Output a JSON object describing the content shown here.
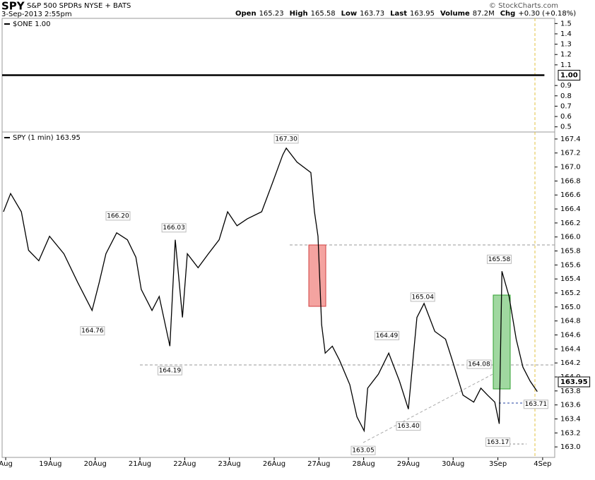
{
  "header": {
    "symbol": "SPY",
    "name": "S&P 500 SPDRs NYSE + BATS",
    "date": "3-Sep-2013 2:55pm",
    "copyright": "© StockCharts.com",
    "quote": [
      {
        "label": "Open",
        "value": "165.23"
      },
      {
        "label": "High",
        "value": "165.58"
      },
      {
        "label": "Low",
        "value": "163.73"
      },
      {
        "label": "Last",
        "value": "163.95"
      },
      {
        "label": "Volume",
        "value": "87.2M"
      },
      {
        "label": "Chg",
        "value": "+0.30 (+0.18%)"
      }
    ]
  },
  "chart_data": [
    {
      "type": "line",
      "title": "$ONE 1.00",
      "value_box": "1.00",
      "x": [
        -0.08,
        12.04
      ],
      "series": [
        {
          "name": "$ONE",
          "color": "#000000",
          "values": [
            1,
            1
          ]
        }
      ],
      "xlim": [
        -0.08,
        12.27
      ],
      "ylim": [
        0.45,
        1.55
      ],
      "yticks": [
        0.5,
        0.6,
        0.7,
        0.8,
        0.9,
        1.1,
        1.2,
        1.3,
        1.4,
        1.5
      ]
    },
    {
      "type": "line",
      "title": "SPY (1 min) 163.95",
      "value_box": "163.95",
      "x": [
        -0.05,
        0.11,
        0.35,
        0.51,
        0.74,
        0.98,
        1.3,
        1.61,
        1.93,
        2.09,
        2.24,
        2.48,
        2.72,
        2.91,
        3.03,
        3.27,
        3.43,
        3.67,
        3.79,
        3.95,
        4.06,
        4.3,
        4.53,
        4.77,
        4.96,
        5.17,
        5.4,
        5.72,
        5.96,
        6.19,
        6.27,
        6.51,
        6.82,
        6.9,
        6.98,
        7.06,
        7.14,
        7.3,
        7.46,
        7.69,
        7.85,
        8.01,
        8.09,
        8.33,
        8.56,
        8.8,
        9.0,
        9.19,
        9.35,
        9.59,
        9.83,
        9.98,
        10.22,
        10.46,
        10.62,
        10.77,
        10.93,
        11.03,
        11.09,
        11.25,
        11.41,
        11.56,
        11.72,
        11.88
      ],
      "series": [
        {
          "name": "SPY",
          "color": "#000000",
          "values": [
            166.36,
            166.62,
            166.36,
            165.81,
            165.66,
            166.01,
            165.76,
            165.35,
            164.95,
            165.35,
            165.76,
            166.06,
            165.96,
            165.71,
            165.25,
            164.95,
            165.15,
            164.44,
            165.96,
            164.85,
            165.76,
            165.56,
            165.76,
            165.96,
            166.36,
            166.16,
            166.26,
            166.36,
            166.77,
            167.17,
            167.27,
            167.07,
            166.92,
            166.36,
            166.01,
            164.75,
            164.34,
            164.44,
            164.24,
            163.89,
            163.43,
            163.23,
            163.84,
            164.04,
            164.34,
            163.94,
            163.54,
            164.85,
            165.05,
            164.65,
            164.54,
            164.24,
            163.74,
            163.64,
            163.84,
            163.74,
            163.64,
            163.33,
            165.51,
            165.15,
            164.54,
            164.14,
            163.94,
            163.79
          ]
        }
      ],
      "xlim": [
        -0.08,
        12.27
      ],
      "ylim": [
        162.85,
        167.5
      ],
      "xticks": [
        {
          "value": 0,
          "label": "Aug"
        },
        {
          "value": 1,
          "label": "19Aug"
        },
        {
          "value": 2,
          "label": "20Aug"
        },
        {
          "value": 3,
          "label": "21Aug"
        },
        {
          "value": 4,
          "label": "22Aug"
        },
        {
          "value": 5,
          "label": "23Aug"
        },
        {
          "value": 6,
          "label": "26Aug"
        },
        {
          "value": 7,
          "label": "27Aug"
        },
        {
          "value": 8,
          "label": "28Aug"
        },
        {
          "value": 9,
          "label": "29Aug"
        },
        {
          "value": 10,
          "label": "30Aug"
        },
        {
          "value": 11,
          "label": "3Sep"
        },
        {
          "value": 12,
          "label": "4Sep"
        }
      ],
      "yticks": [
        {
          "value": 163,
          "label": "163.0"
        },
        163.2,
        163.4,
        163.6,
        163.8,
        {
          "value": 164,
          "label": "164.0"
        },
        164.2,
        164.4,
        164.6,
        164.8,
        {
          "value": 165,
          "label": "165.0"
        },
        165.2,
        165.4,
        165.6,
        165.8,
        {
          "value": 166,
          "label": "166.0"
        },
        166.2,
        166.4,
        166.6,
        166.8,
        {
          "value": 167,
          "label": "167.0"
        },
        167.2,
        167.4
      ],
      "annotations": [
        {
          "label": "167.30",
          "value": 167.3,
          "x": 6.27,
          "position": "above"
        },
        {
          "label": "166.20",
          "value": 166.2,
          "x": 2.51,
          "position": "above"
        },
        {
          "label": "166.03",
          "value": 166.03,
          "x": 3.76,
          "position": "above"
        },
        {
          "label": "164.76",
          "value": 164.76,
          "x": 1.94,
          "position": "below"
        },
        {
          "label": "164.19",
          "value": 164.19,
          "x": 3.67,
          "position": "below"
        },
        {
          "label": "165.04",
          "value": 165.04,
          "x": 9.32,
          "position": "above"
        },
        {
          "label": "164.49",
          "value": 164.49,
          "x": 8.52,
          "position": "above"
        },
        {
          "label": "163.40",
          "value": 163.4,
          "x": 9.0,
          "position": "below"
        },
        {
          "label": "163.05",
          "value": 163.05,
          "x": 7.99,
          "position": "below"
        },
        {
          "label": "164.08",
          "value": 164.08,
          "x": 10.58,
          "position": "above"
        },
        {
          "label": "165.58",
          "value": 165.58,
          "x": 11.03,
          "position": "above"
        },
        {
          "label": "163.17",
          "value": 163.17,
          "x": 11.0,
          "position": "below"
        },
        {
          "label": "163.71",
          "value": 163.71,
          "x": 11.85,
          "position": "below"
        }
      ]
    }
  ]
}
